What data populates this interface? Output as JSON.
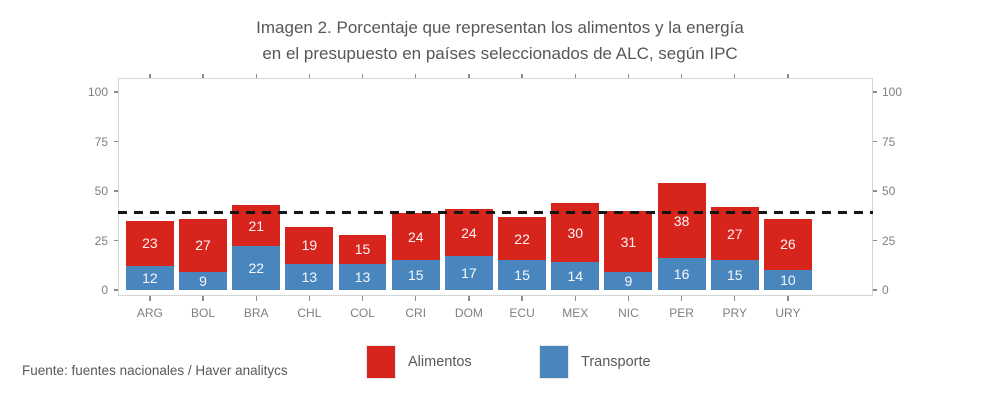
{
  "title": {
    "line1": "Imagen 2. Porcentaje que representan los alimentos y la energía",
    "line2": "en el presupuesto en países seleccionados de ALC, según IPC"
  },
  "source": "Fuente: fuentes nacionales / Haver analitycs",
  "legend": [
    {
      "label": "Alimentos",
      "color": "#d7251e"
    },
    {
      "label": "Transporte",
      "color": "#4a86be"
    }
  ],
  "colors": {
    "alimentos": "#d7251e",
    "transporte": "#4a86be",
    "reference_line": "#141414",
    "axis_text": "#7f7f7f",
    "panel_border": "#d4d4d4"
  },
  "chart_data": {
    "type": "bar",
    "stacked": true,
    "title": "Imagen 2. Porcentaje que representan los alimentos y la energía en el presupuesto en países seleccionados de ALC, según IPC",
    "categories": [
      "ARG",
      "BOL",
      "BRA",
      "CHL",
      "COL",
      "CRI",
      "DOM",
      "ECU",
      "MEX",
      "NIC",
      "PER",
      "PRY",
      "URY"
    ],
    "series": [
      {
        "name": "Alimentos",
        "color": "#d7251e",
        "stack_position": "top",
        "values": [
          23,
          27,
          21,
          19,
          15,
          24,
          24,
          22,
          30,
          31,
          38,
          27,
          26
        ]
      },
      {
        "name": "Transporte",
        "color": "#4a86be",
        "stack_position": "bottom",
        "values": [
          12,
          9,
          22,
          13,
          13,
          15,
          17,
          15,
          14,
          9,
          16,
          15,
          10
        ]
      }
    ],
    "totals": [
      35,
      36,
      43,
      32,
      28,
      39,
      41,
      37,
      44,
      40,
      54,
      42,
      36
    ],
    "yticks": [
      0,
      25,
      50,
      75,
      100
    ],
    "ylim": [
      0,
      100
    ],
    "dual_y_axis": true,
    "reference_line": 39,
    "grid": false,
    "legend_position": "bottom",
    "xlabel": "",
    "ylabel": ""
  }
}
